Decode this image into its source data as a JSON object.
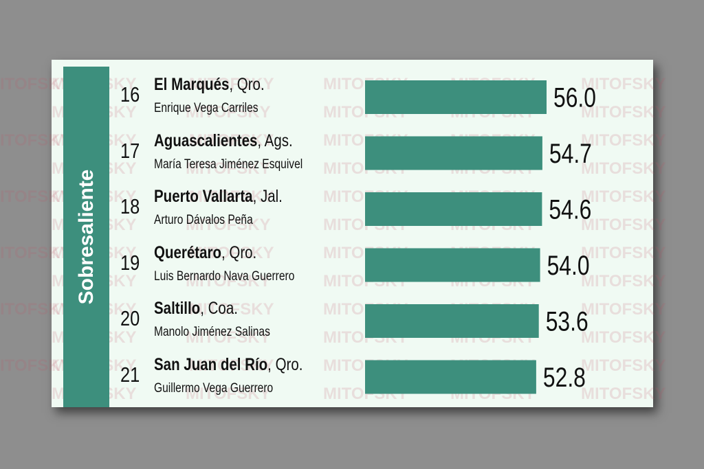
{
  "category": "Sobresaliente",
  "watermark_text": "MITOFSKY",
  "colors": {
    "bar": "#3d8f7d",
    "sidebar": "#3d8f7d",
    "panel": "#f0faf3",
    "text": "#111111"
  },
  "chart_data": {
    "type": "bar",
    "orientation": "horizontal",
    "xlim": [
      0,
      56.0
    ],
    "rows": [
      {
        "rank": "16",
        "city": "El Marqués",
        "state": "Qro.",
        "mayor": "Enrique Vega Carriles",
        "value": 56.0,
        "label": "56.0"
      },
      {
        "rank": "17",
        "city": "Aguascalientes",
        "state": "Ags.",
        "mayor": "María Teresa Jiménez Esquivel",
        "value": 54.7,
        "label": "54.7"
      },
      {
        "rank": "18",
        "city": "Puerto Vallarta",
        "state": "Jal.",
        "mayor": "Arturo Dávalos Peña",
        "value": 54.6,
        "label": "54.6"
      },
      {
        "rank": "19",
        "city": "Querétaro",
        "state": "Qro.",
        "mayor": "Luis Bernardo Nava Guerrero",
        "value": 54.0,
        "label": "54.0"
      },
      {
        "rank": "20",
        "city": "Saltillo",
        "state": "Coa.",
        "mayor": "Manolo Jiménez Salinas",
        "value": 53.6,
        "label": "53.6"
      },
      {
        "rank": "21",
        "city": "San Juan del Río",
        "state": "Qro.",
        "mayor": "Guillermo Vega Guerrero",
        "value": 52.8,
        "label": "52.8"
      }
    ]
  }
}
